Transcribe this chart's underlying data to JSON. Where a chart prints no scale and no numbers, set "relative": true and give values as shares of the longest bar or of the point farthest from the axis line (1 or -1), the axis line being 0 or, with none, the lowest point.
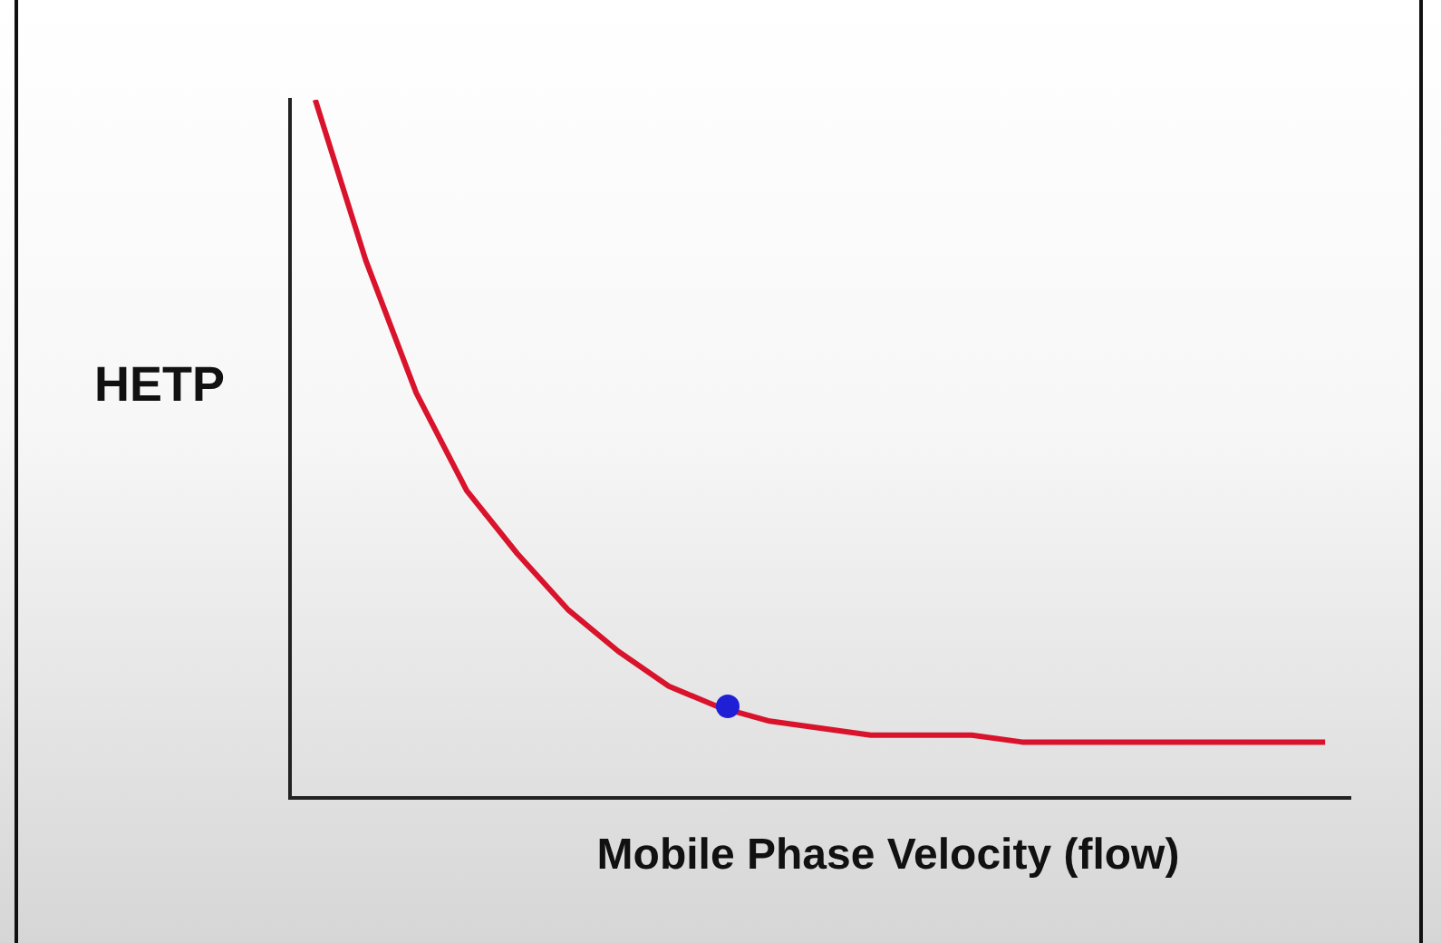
{
  "chart_data": {
    "type": "line",
    "relative": true,
    "xlabel": "Mobile Phase Velocity (flow)",
    "ylabel": "HETP",
    "categories": [
      null,
      null,
      null,
      null,
      null,
      null,
      null,
      null,
      null,
      null,
      null,
      null,
      null,
      null,
      null,
      null,
      null,
      null,
      null,
      null,
      null
    ],
    "legend": false,
    "grid": false,
    "series": [
      {
        "type": "line",
        "color": "#d9132b",
        "marker": "none",
        "line_style": "solid",
        "values": [
          1,
          0.77,
          0.58,
          0.44,
          0.35,
          0.27,
          0.21,
          0.16,
          0.13,
          0.11,
          0.1,
          0.09,
          0.09,
          0.09,
          0.08,
          0.08,
          0.08,
          0.08,
          0.08,
          0.08,
          0.08
        ]
      }
    ]
  }
}
